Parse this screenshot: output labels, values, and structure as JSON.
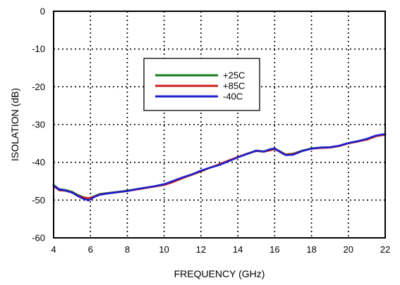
{
  "chart_data": {
    "type": "line",
    "title": "",
    "xlabel": "FREQUENCY (GHz)",
    "ylabel": "ISOLATION (dB)",
    "xlim": [
      4,
      22
    ],
    "ylim": [
      -60,
      0
    ],
    "xticks": [
      4,
      6,
      8,
      10,
      12,
      14,
      16,
      18,
      20,
      22
    ],
    "yticks": [
      0,
      -10,
      -20,
      -30,
      -40,
      -50,
      -60
    ],
    "grid": true,
    "grid_style": "dotted",
    "legend_position": "upper-center",
    "x": [
      4.0,
      4.3,
      4.6,
      5.0,
      5.3,
      5.6,
      5.9,
      6.2,
      6.5,
      7.0,
      7.5,
      8.0,
      8.5,
      9.0,
      9.5,
      10.0,
      10.5,
      11.0,
      11.5,
      12.0,
      12.5,
      13.0,
      13.5,
      14.0,
      14.5,
      15.0,
      15.4,
      15.7,
      16.0,
      16.3,
      16.6,
      17.0,
      17.5,
      18.0,
      18.5,
      19.0,
      19.5,
      20.0,
      20.5,
      21.0,
      21.5,
      22.0
    ],
    "series": [
      {
        "name": "+25C",
        "color": "#1a7a1a",
        "values": [
          -46.0,
          -47.1,
          -47.3,
          -47.8,
          -48.6,
          -49.2,
          -49.6,
          -49.0,
          -48.4,
          -48.1,
          -47.8,
          -47.5,
          -47.1,
          -46.7,
          -46.3,
          -45.8,
          -45.1,
          -44.1,
          -43.3,
          -42.4,
          -41.4,
          -40.6,
          -39.6,
          -38.6,
          -37.8,
          -36.9,
          -37.1,
          -36.8,
          -36.4,
          -37.1,
          -37.9,
          -37.7,
          -36.9,
          -36.3,
          -36.1,
          -36.0,
          -35.6,
          -34.9,
          -34.4,
          -33.9,
          -33.0,
          -32.6
        ]
      },
      {
        "name": "+85C",
        "color": "#cc1e1e",
        "values": [
          -46.3,
          -47.4,
          -47.5,
          -48.0,
          -48.8,
          -49.3,
          -49.5,
          -49.1,
          -48.5,
          -48.2,
          -47.9,
          -47.6,
          -47.2,
          -46.8,
          -46.4,
          -46.0,
          -45.2,
          -44.2,
          -43.3,
          -42.4,
          -41.4,
          -40.5,
          -39.5,
          -38.6,
          -37.7,
          -37.0,
          -37.2,
          -36.9,
          -36.5,
          -37.2,
          -38.0,
          -37.8,
          -37.0,
          -36.4,
          -36.2,
          -36.1,
          -35.7,
          -35.0,
          -34.5,
          -34.0,
          -33.1,
          -32.7
        ]
      },
      {
        "name": "-40C",
        "color": "#1e1ecc",
        "values": [
          -46.1,
          -47.2,
          -47.4,
          -48.0,
          -48.9,
          -49.6,
          -50.1,
          -49.2,
          -48.6,
          -48.2,
          -47.9,
          -47.6,
          -47.1,
          -46.7,
          -46.3,
          -45.8,
          -44.9,
          -44.0,
          -43.2,
          -42.2,
          -41.4,
          -40.7,
          -39.7,
          -38.7,
          -37.8,
          -36.9,
          -37.2,
          -36.6,
          -36.3,
          -37.3,
          -38.1,
          -38.0,
          -37.0,
          -36.4,
          -36.1,
          -36.0,
          -35.6,
          -34.9,
          -34.4,
          -33.8,
          -32.9,
          -32.5
        ]
      }
    ]
  }
}
